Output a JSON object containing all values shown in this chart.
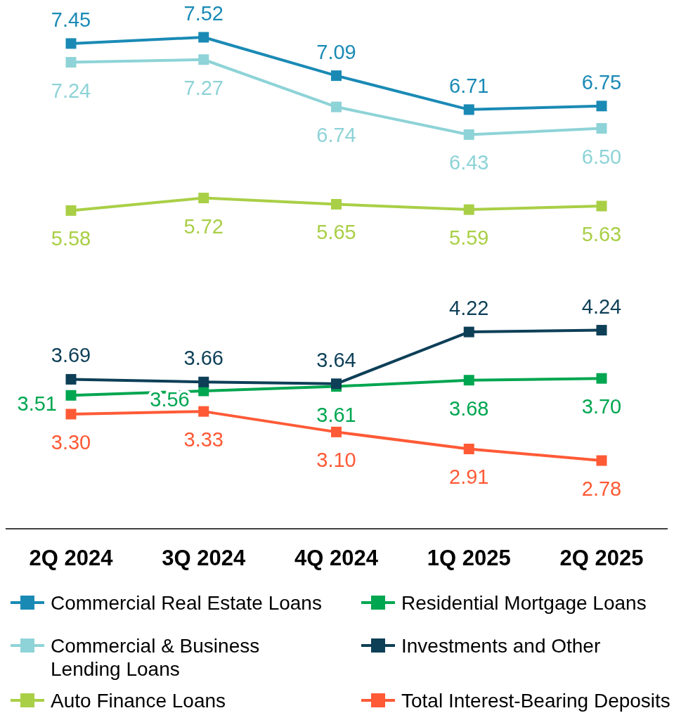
{
  "chart_data": {
    "type": "line",
    "categories": [
      "2Q 2024",
      "3Q 2024",
      "4Q 2024",
      "1Q 2025",
      "2Q 2025"
    ],
    "series": [
      {
        "name": "Commercial Real Estate Loans",
        "color": "#1a8ab5",
        "values": [
          7.45,
          7.52,
          7.09,
          6.71,
          6.75
        ],
        "value_labels": [
          "7.45",
          "7.52",
          "7.09",
          "6.71",
          "6.75"
        ]
      },
      {
        "name": "Commercial & Business Lending Loans",
        "color": "#8ed3d7",
        "values": [
          7.24,
          7.27,
          6.74,
          6.43,
          6.5
        ],
        "value_labels": [
          "7.24",
          "7.27",
          "6.74",
          "6.43",
          "6.50"
        ]
      },
      {
        "name": "Auto Finance Loans",
        "color": "#a9cf46",
        "values": [
          5.58,
          5.72,
          5.65,
          5.59,
          5.63
        ],
        "value_labels": [
          "5.58",
          "5.72",
          "5.65",
          "5.59",
          "5.63"
        ]
      },
      {
        "name": "Residential Mortgage Loans",
        "color": "#00a650",
        "values": [
          3.51,
          3.56,
          3.61,
          3.68,
          3.7
        ],
        "value_labels": [
          "3.51",
          "3.56",
          "3.61",
          "3.68",
          "3.70"
        ]
      },
      {
        "name": "Investments and Other",
        "color": "#0d3f57",
        "values": [
          3.69,
          3.66,
          3.64,
          4.22,
          4.24
        ],
        "value_labels": [
          "3.69",
          "3.66",
          "3.64",
          "4.22",
          "4.24"
        ]
      },
      {
        "name": "Total Interest-Bearing Deposits",
        "color": "#ff5a36",
        "values": [
          3.3,
          3.33,
          3.1,
          2.91,
          2.78
        ],
        "value_labels": [
          "3.30",
          "3.33",
          "3.10",
          "2.91",
          "2.78"
        ]
      }
    ],
    "marker": "square",
    "line_style": "solid",
    "legend": "bottom"
  }
}
